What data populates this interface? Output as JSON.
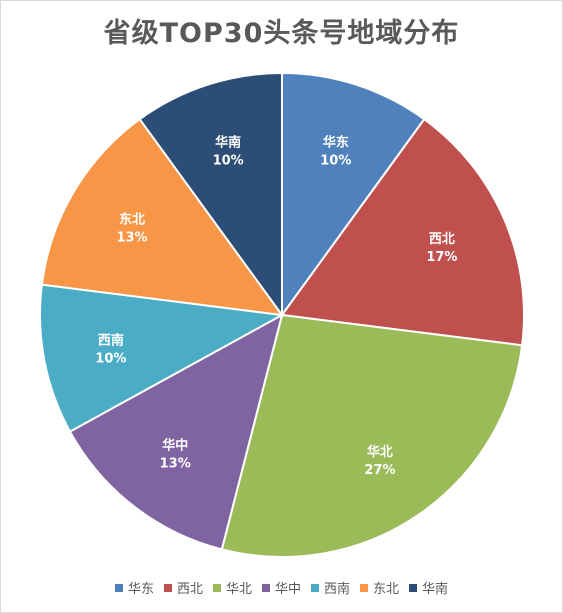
{
  "chart_data": {
    "type": "pie",
    "title": "省级TOP30头条号地域分布",
    "categories": [
      "华东",
      "西北",
      "华北",
      "华中",
      "西南",
      "东北",
      "华南"
    ],
    "values": [
      10,
      17,
      27,
      13,
      10,
      13,
      10
    ],
    "value_labels": [
      "10%",
      "17%",
      "27%",
      "13%",
      "10%",
      "13%",
      "10%"
    ],
    "colors": [
      "#4f81bd",
      "#c0504d",
      "#9bbb59",
      "#8064a2",
      "#4bacc6",
      "#f79646",
      "#2c4d75"
    ],
    "legend_position": "bottom",
    "start_angle": "12 o'clock",
    "direction": "clockwise"
  }
}
